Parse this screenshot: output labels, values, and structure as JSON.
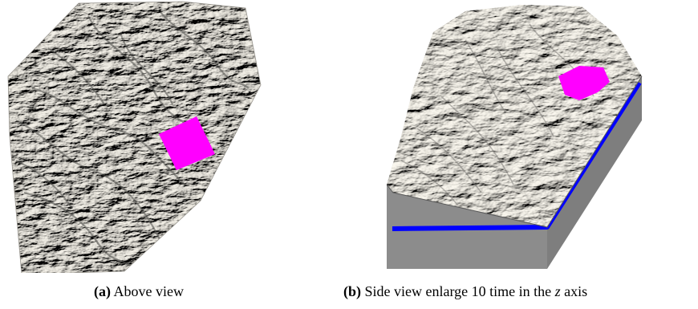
{
  "figure": {
    "panel_a": {
      "label": "(a)",
      "caption_text": "Above view"
    },
    "panel_b": {
      "label": "(b)",
      "caption_pre": "Side view enlarge 10 time in the",
      "caption_var": "z",
      "caption_post": "axis"
    },
    "colors": {
      "terrain_light": "#e9e6dc",
      "terrain_shadow": "#5b5b58",
      "highlight_region": "#ff00ff",
      "subsurface_layer": "#0000ff",
      "block_side": "#8a8a8a"
    }
  }
}
